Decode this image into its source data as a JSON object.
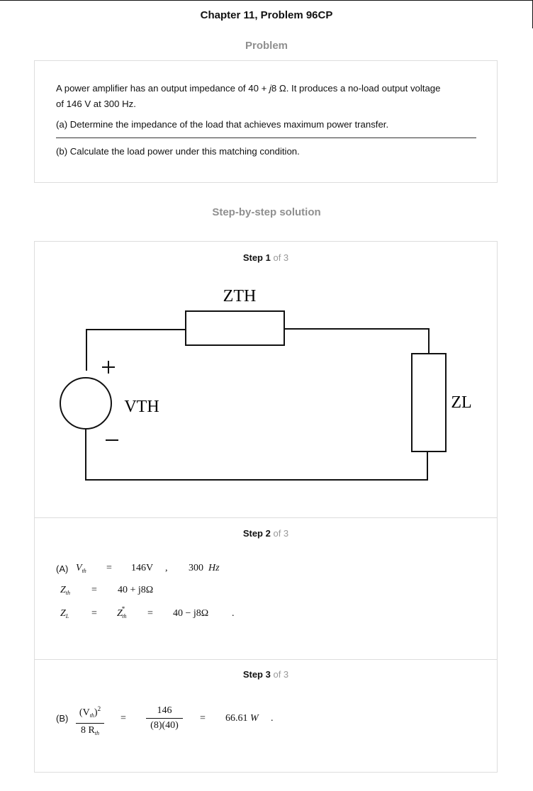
{
  "header": {
    "title": "Chapter 11, Problem 96CP"
  },
  "problem": {
    "heading": "Problem",
    "line1_pre": "A power amplifier has an output impedance of 40 + ",
    "line1_j": "j",
    "line1_post": "8 Ω. It produces a no-load output voltage",
    "line2": "of 146 V at 300 Hz.",
    "part_a": "(a) Determine the impedance of the load that achieves maximum power transfer.",
    "part_b": "(b) Calculate the load power under this matching condition."
  },
  "solution": {
    "heading": "Step-by-step solution",
    "of_text": "of 3",
    "step1": {
      "label": "Step 1"
    },
    "step2": {
      "label": "Step 2"
    },
    "step3": {
      "label": "Step 3"
    }
  },
  "circuit": {
    "zth_label": "ZTH",
    "vth_label": "VTH",
    "zl_label": "ZL",
    "plus": "+",
    "minus": "−"
  },
  "step2": {
    "a_label": "(A)",
    "vth_V": "V",
    "vth_sub": "th",
    "eq": "=",
    "vth_val": "146V",
    "comma": ",",
    "freq": "300",
    "freq_unit": "Hz",
    "zth_Z": "Z",
    "zth_sub": "th",
    "zth_val": "40  +  j8Ω",
    "zl_Z": "Z",
    "zl_sub": "L",
    "zconj_Z": "Z",
    "zconj_sup": "*",
    "zconj_sub": "th",
    "zl_val": "40  −  j8Ω",
    "period": "."
  },
  "step3": {
    "b_label": "(B)",
    "num_expr": "(V",
    "num_sub": "th",
    "num_close": ")",
    "num_sup": "2",
    "den_expr": "8 R",
    "den_sub": "th",
    "eq": "=",
    "num2": "146",
    "den2": "(8)(40)",
    "result": "66.61",
    "unit": "W",
    "period": "."
  }
}
